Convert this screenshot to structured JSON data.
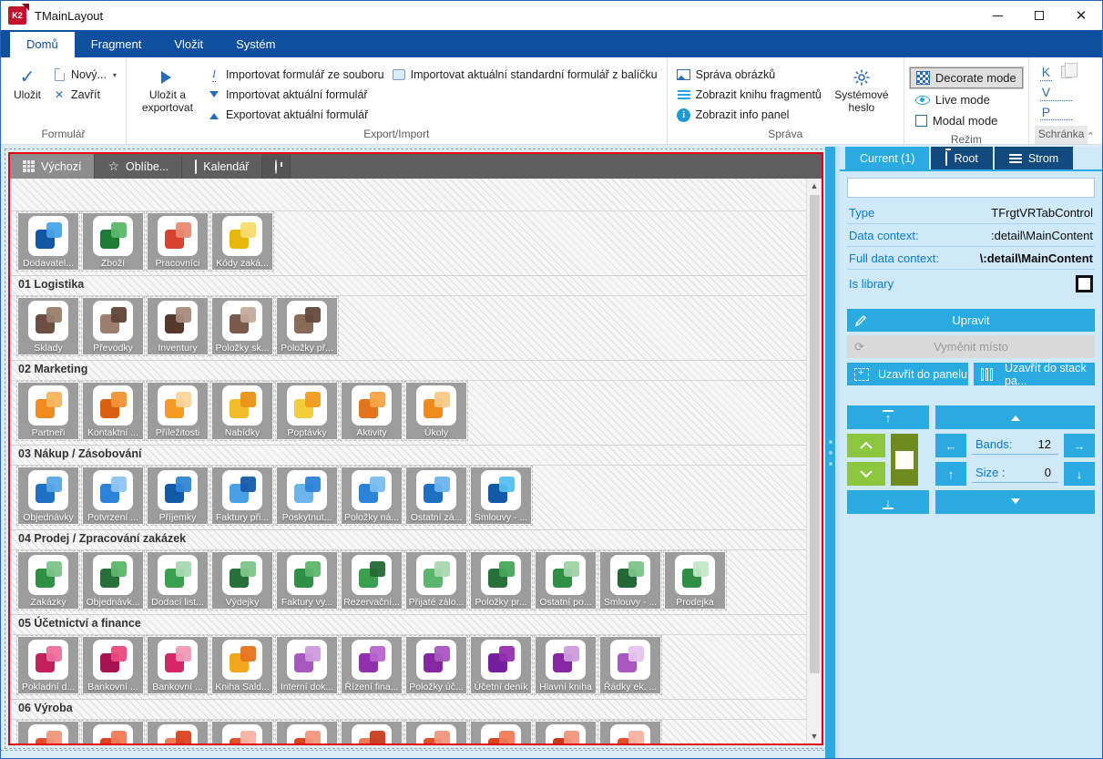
{
  "window": {
    "title": "TMainLayout",
    "logo": "K2"
  },
  "ribbon": {
    "tabs": [
      {
        "label": "Domů",
        "active": true
      },
      {
        "label": "Fragment",
        "active": false
      },
      {
        "label": "Vložit",
        "active": false
      },
      {
        "label": "Systém",
        "active": false
      }
    ],
    "save_label": "Uložit",
    "new_label": "Nový...",
    "close_label": "Zavřít",
    "save_export_label": "Uložit a exportovat",
    "import_file_label": "Importovat formulář ze souboru",
    "import_current_label": "Importovat aktuální formulář",
    "export_current_label": "Exportovat aktuální formulář",
    "import_package_label": "Importovat aktuální standardní formulář z balíčku",
    "manage_images_label": "Správa obrázků",
    "show_fragment_book_label": "Zobrazit knihu fragmentů",
    "show_info_panel_label": "Zobrazit info panel",
    "system_password_label": "Systémové heslo",
    "decorate_mode_label": "Decorate mode",
    "live_mode_label": "Live mode",
    "modal_mode_label": "Modal mode",
    "clipboard_k": "K",
    "clipboard_v": "V",
    "clipboard_p": "P",
    "group_labels": {
      "formular": "Formulář",
      "export_import": "Export/Import",
      "sprava": "Správa",
      "rezim": "Režim",
      "schranka": "Schránka"
    }
  },
  "canvas": {
    "tabs": [
      {
        "label": "Výchozí",
        "icon": "grid-icon",
        "active": true
      },
      {
        "label": "Oblíbe...",
        "icon": "star-icon",
        "active": false
      },
      {
        "label": "Kalendář",
        "icon": "calendar-icon",
        "active": false
      },
      {
        "label": "",
        "icon": "clock-icon",
        "active": false
      }
    ],
    "selection_border_color": "#e3000f",
    "sections": [
      {
        "header": null,
        "tiles": [
          {
            "label": "Dodavatel...",
            "c1": "#1257a5",
            "c2": "#4aa3e8"
          },
          {
            "label": "Zboží",
            "c1": "#1e7a34",
            "c2": "#58b868"
          },
          {
            "label": "Pracovníci",
            "c1": "#d8432f",
            "c2": "#e98973"
          },
          {
            "label": "Kódy zaká...",
            "c1": "#e8b50a",
            "c2": "#f6dc6e"
          }
        ]
      },
      {
        "header": "01 Logistika",
        "tiles": [
          {
            "label": "Sklady",
            "c1": "#6b4f41",
            "c2": "#9b7e6e"
          },
          {
            "label": "Převodky",
            "c1": "#9b7e6e",
            "c2": "#5f4537"
          },
          {
            "label": "Inventury",
            "c1": "#54392c",
            "c2": "#a78b7b"
          },
          {
            "label": "Položky sk...",
            "c1": "#7a5a49",
            "c2": "#c3aa9c"
          },
          {
            "label": "Položky př...",
            "c1": "#8a6a58",
            "c2": "#64493b"
          }
        ]
      },
      {
        "header": "02 Marketing",
        "tiles": [
          {
            "label": "Partneři",
            "c1": "#ef8a1e",
            "c2": "#f7b45b"
          },
          {
            "label": "Kontaktní ...",
            "c1": "#d95f10",
            "c2": "#f09334"
          },
          {
            "label": "Příležitosti",
            "c1": "#f59d20",
            "c2": "#fbd49a"
          },
          {
            "label": "Nabídky",
            "c1": "#f2bc28",
            "c2": "#e89016"
          },
          {
            "label": "Poptávky",
            "c1": "#f4ce3a",
            "c2": "#ef9a1c"
          },
          {
            "label": "Aktivity",
            "c1": "#e4731c",
            "c2": "#f7a345"
          },
          {
            "label": "Úkoly",
            "c1": "#ef8a1e",
            "c2": "#f8c987"
          }
        ]
      },
      {
        "header": "03 Nákup / Zásobování",
        "tiles": [
          {
            "label": "Objednávky",
            "c1": "#1f6fc4",
            "c2": "#59a7e8"
          },
          {
            "label": "Potvrzení ...",
            "c1": "#2b82d9",
            "c2": "#8ec4f0"
          },
          {
            "label": "Příjemky",
            "c1": "#1259a8",
            "c2": "#2f86d6"
          },
          {
            "label": "Faktury při...",
            "c1": "#4aa0e6",
            "c2": "#145ba9"
          },
          {
            "label": "Poskytnut...",
            "c1": "#6cb5ec",
            "c2": "#2b82d9"
          },
          {
            "label": "Položky ná...",
            "c1": "#2b82d9",
            "c2": "#79bdee"
          },
          {
            "label": "Ostatní zá...",
            "c1": "#1f6fc4",
            "c2": "#6cb5ec"
          },
          {
            "label": "Smlouvy - ...",
            "c1": "#1259a8",
            "c2": "#55c0ee"
          }
        ]
      },
      {
        "header": "04 Prodej / Zpracování zakázek",
        "tiles": [
          {
            "label": "Zakázky",
            "c1": "#2f8f44",
            "c2": "#7cc488"
          },
          {
            "label": "Objednávk...",
            "c1": "#27703a",
            "c2": "#5cb56c"
          },
          {
            "label": "Dodací list...",
            "c1": "#39a04e",
            "c2": "#a8d8ae"
          },
          {
            "label": "Výdejky",
            "c1": "#27703a",
            "c2": "#7cc488"
          },
          {
            "label": "Faktury vy...",
            "c1": "#2f8f44",
            "c2": "#5cb56c"
          },
          {
            "label": "Rezervační...",
            "c1": "#39a04e",
            "c2": "#246736"
          },
          {
            "label": "Přijaté zálo...",
            "c1": "#5cb56c",
            "c2": "#a8d8ae"
          },
          {
            "label": "Položky pr...",
            "c1": "#27703a",
            "c2": "#44a658"
          },
          {
            "label": "Ostatní po...",
            "c1": "#2f8f44",
            "c2": "#9ed2a5"
          },
          {
            "label": "Smlouvy - ...",
            "c1": "#246736",
            "c2": "#7cc488"
          },
          {
            "label": "Prodejka",
            "c1": "#2f8f44",
            "c2": "#c4e6c8"
          }
        ]
      },
      {
        "header": "05 Účetnictví a finance",
        "tiles": [
          {
            "label": "Pokladní d...",
            "c1": "#c21f5e",
            "c2": "#ee6f9a"
          },
          {
            "label": "Bankovní ...",
            "c1": "#a61350",
            "c2": "#ea4a7e"
          },
          {
            "label": "Bankovní ...",
            "c1": "#d62568",
            "c2": "#f29ab8"
          },
          {
            "label": "Kniha Sald...",
            "c1": "#f2a51e",
            "c2": "#e4731c"
          },
          {
            "label": "Interní dok...",
            "c1": "#a957c0",
            "c2": "#cf9bdc"
          },
          {
            "label": "Řízení fina...",
            "c1": "#922fae",
            "c2": "#b764cc"
          },
          {
            "label": "Položky úč...",
            "c1": "#8527a0",
            "c2": "#a957c0"
          },
          {
            "label": "Účetní deník",
            "c1": "#74209c",
            "c2": "#922fae"
          },
          {
            "label": "Hlavní kniha",
            "c1": "#8527a0",
            "c2": "#cf9bdc"
          },
          {
            "label": "Řádky ek. ...",
            "c1": "#a957c0",
            "c2": "#e5c3ee"
          }
        ]
      },
      {
        "header": "06 Výroba",
        "tiles": [
          {
            "label": "",
            "c1": "#e1502a",
            "c2": "#f2957c"
          },
          {
            "label": "",
            "c1": "#d9431f",
            "c2": "#ef7b5a"
          },
          {
            "label": "",
            "c1": "#ef7b5a",
            "c2": "#d9431f"
          },
          {
            "label": "",
            "c1": "#e1502a",
            "c2": "#f6b3a2"
          },
          {
            "label": "",
            "c1": "#d9431f",
            "c2": "#f2957c"
          },
          {
            "label": "",
            "c1": "#ef7b5a",
            "c2": "#c93c1b"
          },
          {
            "label": "",
            "c1": "#e1502a",
            "c2": "#f2957c"
          },
          {
            "label": "",
            "c1": "#d9431f",
            "c2": "#ef7b5a"
          },
          {
            "label": "",
            "c1": "#c93c1b",
            "c2": "#f2957c"
          },
          {
            "label": "",
            "c1": "#e1502a",
            "c2": "#f6b3a2"
          }
        ]
      }
    ]
  },
  "panel": {
    "accent_color": "#29abe2",
    "tabs": [
      {
        "label": "Current (1)",
        "icon": null,
        "active": true
      },
      {
        "label": "Root",
        "icon": "folder-icon",
        "active": false
      },
      {
        "label": "Strom",
        "icon": "list-icon",
        "active": false
      }
    ],
    "search_value": "",
    "properties": [
      {
        "label": "Type",
        "value": "TFrgtVRTabControl",
        "bold": false
      },
      {
        "label": "Data context:",
        "value": ":detail\\MainContent",
        "bold": false
      },
      {
        "label": "Full data context:",
        "value": "\\:detail\\MainContent",
        "bold": true
      }
    ],
    "is_library_label": "Is library",
    "edit_label": "Upravit",
    "swap_label": "Vyměnit místo",
    "close_panel_label": "Uzavřít do panelu",
    "close_stack_label": "Uzavřít do stack pa...",
    "bands_label": "Bands:",
    "bands_value": "12",
    "size_label": "Size :",
    "size_value": "0"
  }
}
